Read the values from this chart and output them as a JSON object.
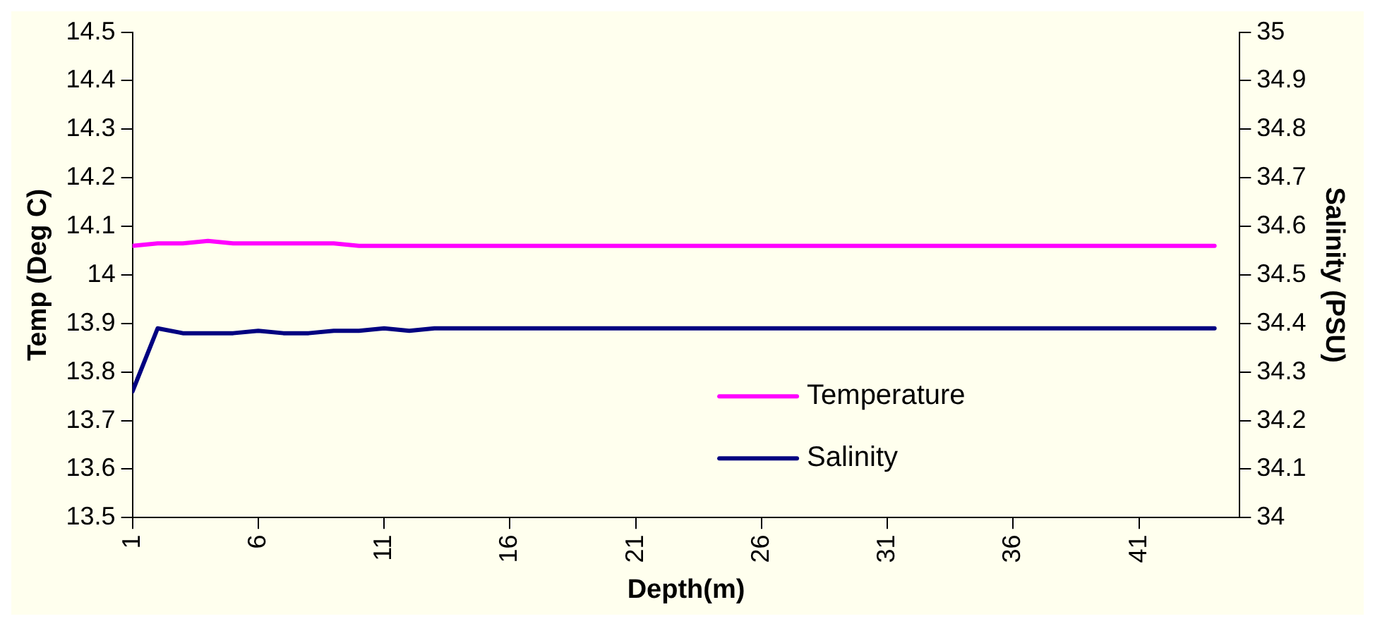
{
  "chart_data": {
    "type": "line",
    "xlabel": "Depth(m)",
    "ylabel": "Temp (Deg C)",
    "y2label": "Salinity (PSU)",
    "x": [
      1,
      2,
      3,
      4,
      5,
      6,
      7,
      8,
      9,
      10,
      11,
      12,
      13,
      14,
      15,
      16,
      17,
      18,
      19,
      20,
      21,
      22,
      23,
      24,
      25,
      26,
      27,
      28,
      29,
      30,
      31,
      32,
      33,
      34,
      35,
      36,
      37,
      38,
      39,
      40,
      41,
      42,
      43,
      44
    ],
    "xlim": [
      1,
      45
    ],
    "xticks": [
      1,
      6,
      11,
      16,
      21,
      26,
      31,
      36,
      41
    ],
    "ylim": [
      13.5,
      14.5
    ],
    "yticks": [
      13.5,
      13.6,
      13.7,
      13.8,
      13.9,
      14,
      14.1,
      14.2,
      14.3,
      14.4,
      14.5
    ],
    "y2lim": [
      34,
      35
    ],
    "y2ticks": [
      34,
      34.1,
      34.2,
      34.3,
      34.4,
      34.5,
      34.6,
      34.7,
      34.8,
      34.9,
      35
    ],
    "series": [
      {
        "name": "Temperature",
        "color": "#ff00ff",
        "values": [
          14.06,
          14.065,
          14.065,
          14.07,
          14.065,
          14.065,
          14.065,
          14.065,
          14.065,
          14.06,
          14.06,
          14.06,
          14.06,
          14.06,
          14.06,
          14.06,
          14.06,
          14.06,
          14.06,
          14.06,
          14.06,
          14.06,
          14.06,
          14.06,
          14.06,
          14.06,
          14.06,
          14.06,
          14.06,
          14.06,
          14.06,
          14.06,
          14.06,
          14.06,
          14.06,
          14.06,
          14.06,
          14.06,
          14.06,
          14.06,
          14.06,
          14.06,
          14.06,
          14.06
        ]
      },
      {
        "name": "Salinity",
        "color": "#000080",
        "axis": "y2",
        "values": [
          34.26,
          34.39,
          34.38,
          34.38,
          34.38,
          34.385,
          34.38,
          34.38,
          34.385,
          34.385,
          34.39,
          34.385,
          34.39,
          34.39,
          34.39,
          34.39,
          34.39,
          34.39,
          34.39,
          34.39,
          34.39,
          34.39,
          34.39,
          34.39,
          34.39,
          34.39,
          34.39,
          34.39,
          34.39,
          34.39,
          34.39,
          34.39,
          34.39,
          34.39,
          34.39,
          34.39,
          34.39,
          34.39,
          34.39,
          34.39,
          34.39,
          34.39,
          34.39,
          34.39
        ]
      }
    ],
    "legend": "bottom right",
    "grid": false,
    "marker": "none",
    "line_style": "solid"
  }
}
